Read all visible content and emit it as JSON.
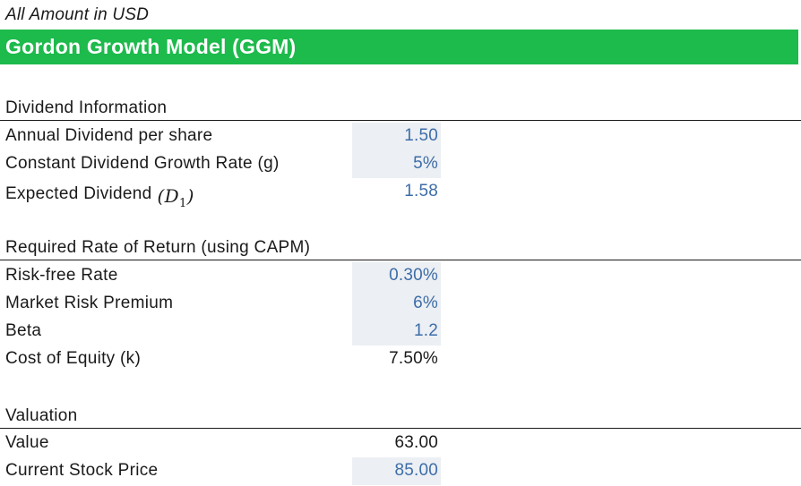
{
  "note": "All Amount in USD",
  "title": "Gordon Growth Model (GGM)",
  "sections": {
    "dividend": {
      "heading": "Dividend Information",
      "rows": [
        {
          "label": "Annual Dividend per share",
          "value": "1.50",
          "type": "input"
        },
        {
          "label": "Constant Dividend Growth Rate (g)",
          "value": "5%",
          "type": "input"
        },
        {
          "label": "Expected Dividend",
          "math_open": "(",
          "math_var": "D",
          "math_sub": "1",
          "math_close": ")",
          "value": "1.58",
          "type": "output-blue"
        }
      ]
    },
    "required_return": {
      "heading": "Required Rate of Return  (using CAPM)",
      "rows": [
        {
          "label": "Risk-free Rate",
          "value": "0.30%",
          "type": "input"
        },
        {
          "label": "Market Risk Premium",
          "value": "6%",
          "type": "input"
        },
        {
          "label": "Beta",
          "value": "1.2",
          "type": "input"
        },
        {
          "label": "Cost of Equity (k)",
          "value": "7.50%",
          "type": "calc"
        }
      ]
    },
    "valuation": {
      "heading": "Valuation",
      "rows": [
        {
          "label": "Value",
          "value": "63.00",
          "type": "calc"
        },
        {
          "label": "Current Stock Price",
          "value": "85.00",
          "type": "input"
        }
      ]
    }
  },
  "colors": {
    "banner": "#1dba4c",
    "input_fill": "#eceff3",
    "input_text": "#3d6da8"
  }
}
